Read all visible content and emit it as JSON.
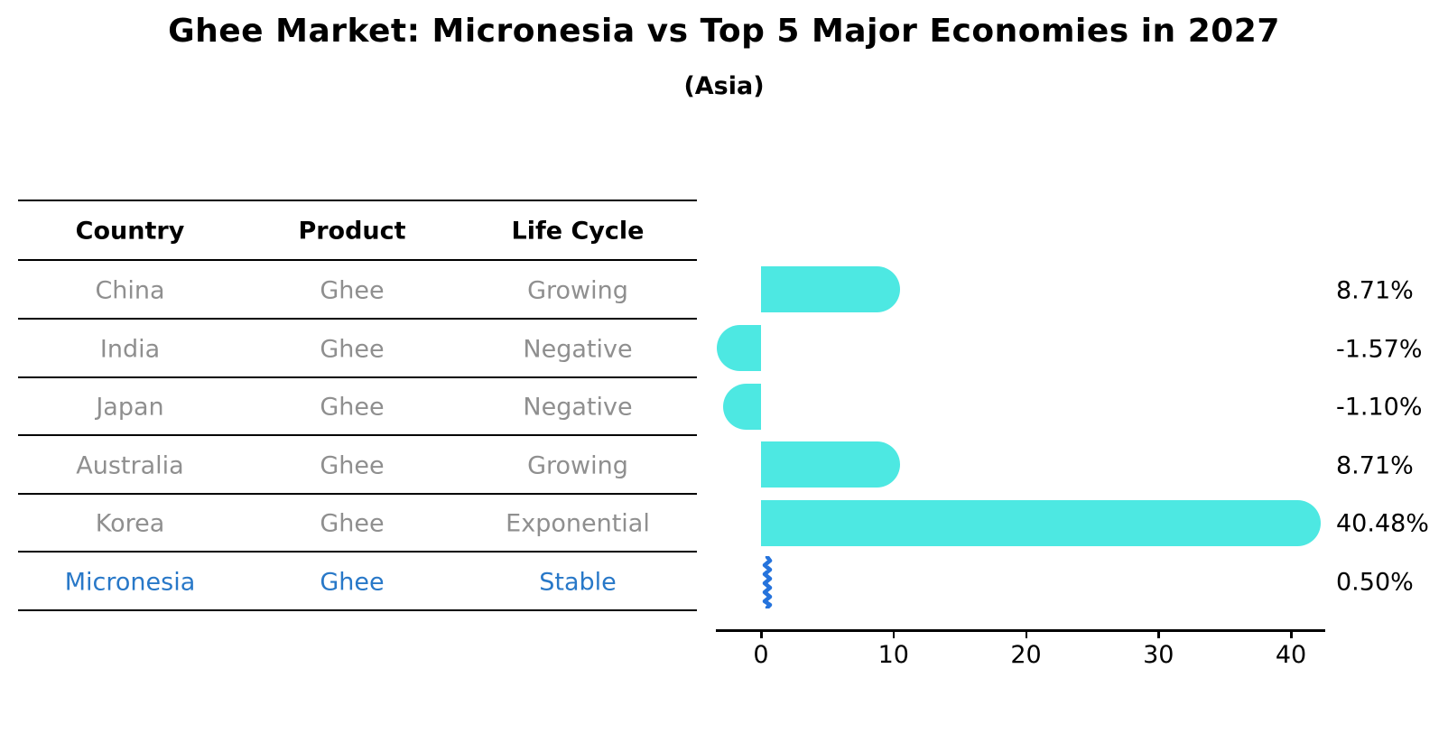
{
  "title": "Ghee Market: Micronesia vs Top 5 Major Economies in 2027",
  "subtitle": "(Asia)",
  "table": {
    "headers": [
      "Country",
      "Product",
      "Life Cycle"
    ],
    "rows": [
      {
        "country": "China",
        "product": "Ghee",
        "life_cycle": "Growing",
        "highlight": false
      },
      {
        "country": "India",
        "product": "Ghee",
        "life_cycle": "Negative",
        "highlight": false
      },
      {
        "country": "Japan",
        "product": "Ghee",
        "life_cycle": "Negative",
        "highlight": false
      },
      {
        "country": "Australia",
        "product": "Ghee",
        "life_cycle": "Growing",
        "highlight": false
      },
      {
        "country": "Korea",
        "product": "Ghee",
        "life_cycle": "Exponential",
        "highlight": false
      },
      {
        "country": "Micronesia",
        "product": "Ghee",
        "life_cycle": "Stable",
        "highlight": true
      }
    ]
  },
  "chart_data": {
    "type": "bar",
    "orientation": "horizontal",
    "categories": [
      "China",
      "India",
      "Japan",
      "Australia",
      "Korea",
      "Micronesia"
    ],
    "values": [
      8.71,
      -1.57,
      -1.1,
      8.71,
      40.48,
      0.5
    ],
    "value_labels": [
      "8.71%",
      "-1.57%",
      "-1.10%",
      "8.71%",
      "40.48%",
      "0.50%"
    ],
    "highlight_index": 5,
    "marker_style": "blue-zigzag",
    "xlabel": "",
    "ylabel": "",
    "xticks": [
      0,
      10,
      20,
      30,
      40
    ],
    "xlim": [
      -3.4,
      42.6
    ],
    "grid": false,
    "legend": false,
    "bar_color": "#4de8e2",
    "highlight_color": "#2573dc",
    "axis_color": "#000000",
    "text_gray": "#8f8f8f",
    "highlight_text_color": "#2878c8"
  }
}
